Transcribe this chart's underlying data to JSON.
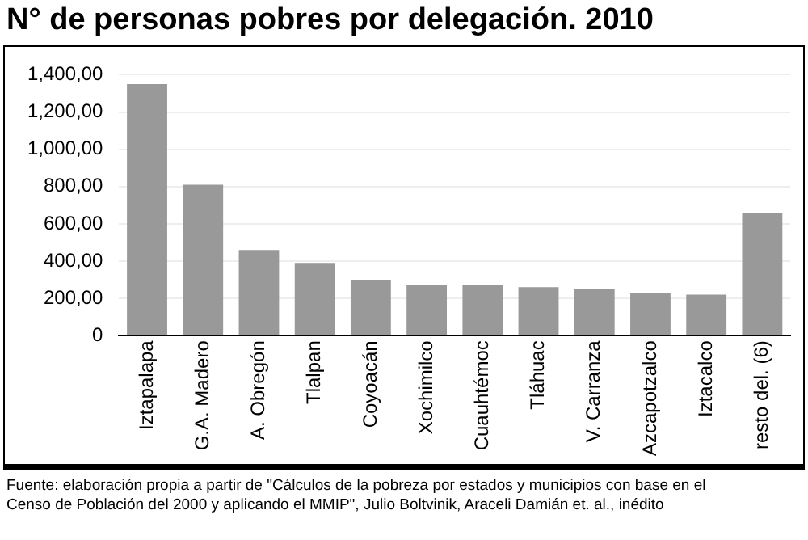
{
  "chart_data": {
    "type": "bar",
    "title": "N° de personas pobres por delegación. 2010",
    "categories": [
      "Iztapalapa",
      "G.A. Madero",
      "A. Obregón",
      "Tlalpan",
      "Coyoacán",
      "Xochimilco",
      "Cuauhtémoc",
      "Tláhuac",
      "V. Carranza",
      "Azcapotzalco",
      "Iztacalco",
      "resto del. (6)"
    ],
    "values": [
      1350,
      810,
      460,
      390,
      300,
      270,
      270,
      260,
      250,
      230,
      220,
      660
    ],
    "color": "#999999",
    "ylim": [
      0,
      1400
    ],
    "yticks": [
      {
        "value": 0,
        "label": "0"
      },
      {
        "value": 200,
        "label": "200,00"
      },
      {
        "value": 400,
        "label": "400,00"
      },
      {
        "value": 600,
        "label": "600,00"
      },
      {
        "value": 800,
        "label": "800,00"
      },
      {
        "value": 1000,
        "label": "1,000,00"
      },
      {
        "value": 1200,
        "label": "1,200,00"
      },
      {
        "value": 1400,
        "label": "1,400,00"
      }
    ],
    "grid": "y",
    "legend": false,
    "annotations": [
      "Fuente: elaboración propia a partir de \"Cálculos de la pobreza por estados y municipios con base en el Censo de Población del 2000 y aplicando el MMIP\", Julio Boltvinik, Araceli Damián et. al., inédito"
    ]
  }
}
